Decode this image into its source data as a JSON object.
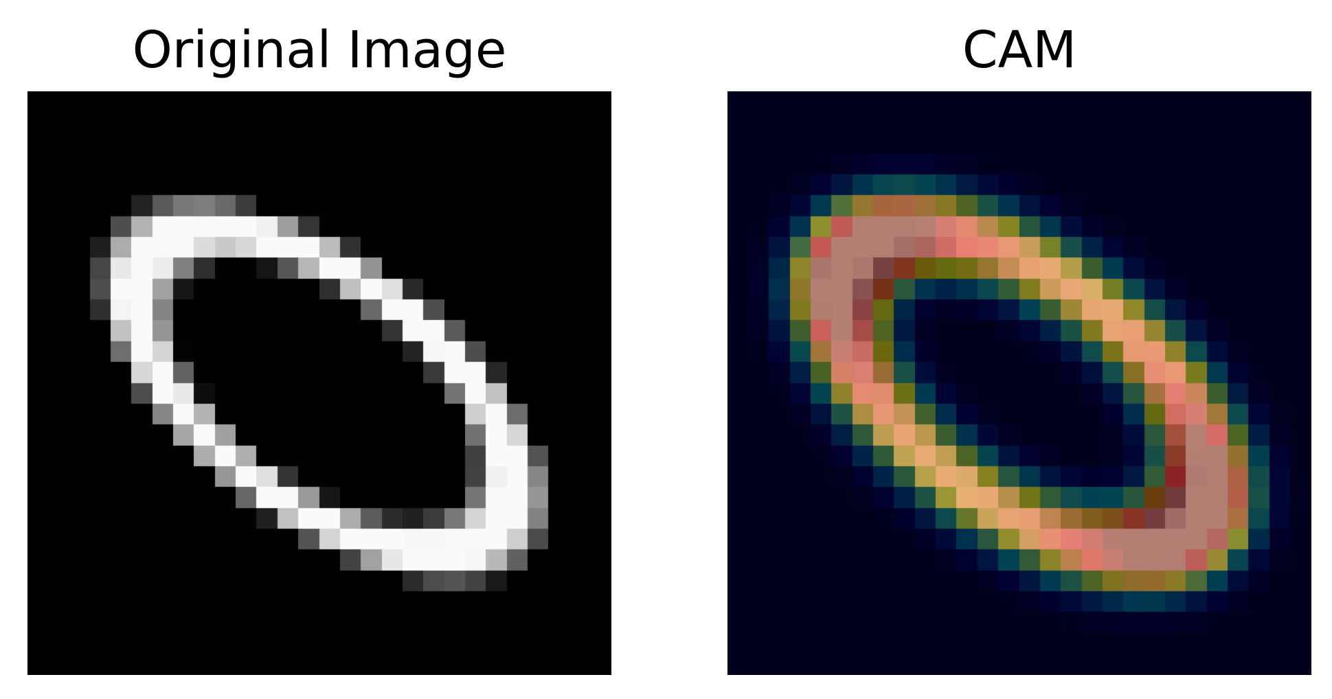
{
  "figure": {
    "left_panel": {
      "title": "Original Image",
      "colormap": "gray"
    },
    "right_panel": {
      "title": "CAM",
      "colormap": "jet-overlay",
      "background_color": "#00001a"
    }
  }
}
